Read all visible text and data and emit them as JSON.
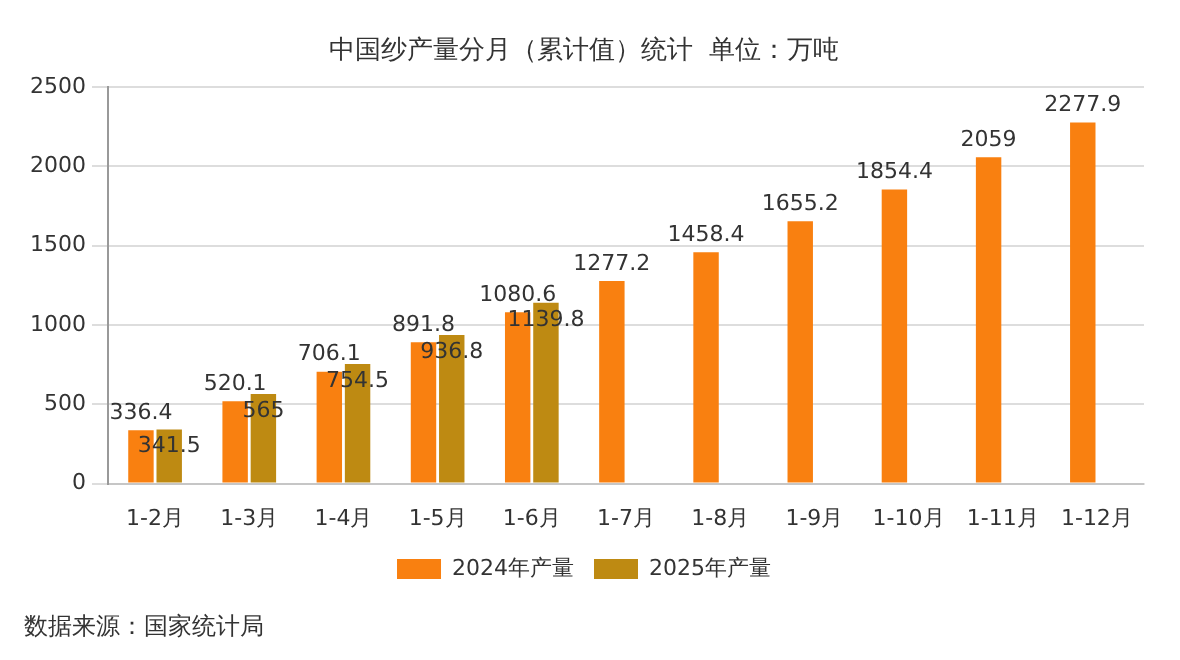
{
  "chart_data": {
    "type": "bar",
    "title": "中国纱产量分月（累计值）统计  单位：万吨",
    "categories": [
      "1-2月",
      "1-3月",
      "1-4月",
      "1-5月",
      "1-6月",
      "1-7月",
      "1-8月",
      "1-9月",
      "1-10月",
      "1-11月",
      "1-12月"
    ],
    "series": [
      {
        "name": "2024年产量",
        "color": "#f98010",
        "values": [
          336.4,
          520.1,
          706.1,
          891.8,
          1080.6,
          1277.2,
          1458.4,
          1655.2,
          1854.4,
          2059,
          2277.9
        ]
      },
      {
        "name": "2025年产量",
        "color": "#be8a12",
        "values": [
          341.5,
          565,
          754.5,
          936.8,
          1139.8,
          null,
          null,
          null,
          null,
          null,
          null
        ]
      }
    ],
    "ylim": [
      0,
      2500
    ],
    "yticks": [
      0,
      500,
      1000,
      1500,
      2000,
      2500
    ],
    "grid": "y",
    "legend": "bottom",
    "data_labels": true,
    "annotations": [
      "数据来源：国家统计局"
    ]
  }
}
